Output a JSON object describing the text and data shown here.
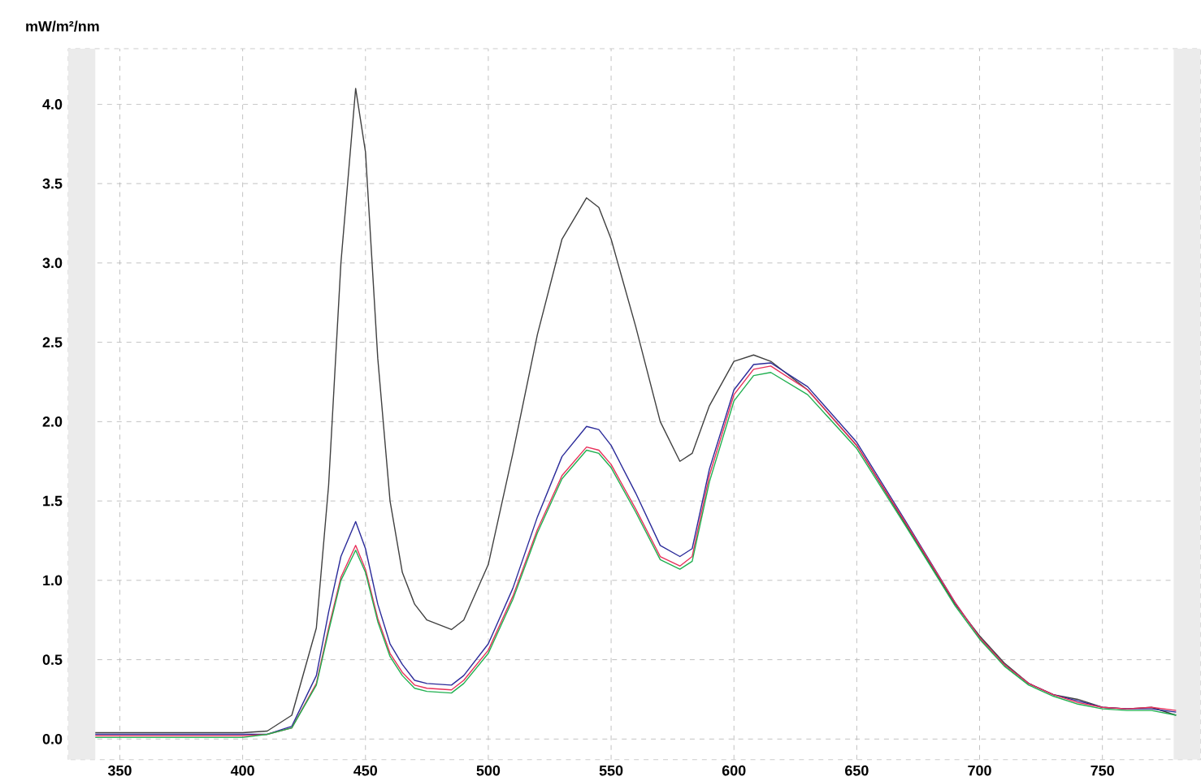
{
  "chart_data": {
    "type": "line",
    "ylabel": "mW/m²/nm",
    "grid": true,
    "xlim": [
      329,
      790
    ],
    "ylim": [
      -0.13,
      4.35
    ],
    "xticks": [
      350,
      400,
      450,
      500,
      550,
      600,
      650,
      700,
      750
    ],
    "yticks": [
      {
        "value": 0,
        "label": "0.0"
      },
      0.5,
      {
        "value": 1,
        "label": "1.0"
      },
      1.5,
      {
        "value": 2,
        "label": "2.0"
      },
      2.5,
      {
        "value": 3,
        "label": "3.0"
      },
      3.5,
      {
        "value": 4,
        "label": "4.0"
      }
    ],
    "bands": [
      {
        "axis": "x",
        "from": 329,
        "to": 340,
        "color": "#ebebeb"
      },
      {
        "axis": "x",
        "from": 779,
        "to": 790,
        "color": "#ebebeb"
      }
    ],
    "x": [
      340,
      400,
      410,
      420,
      430,
      435,
      440,
      446,
      450,
      455,
      460,
      465,
      470,
      475,
      485,
      490,
      500,
      510,
      520,
      530,
      540,
      545,
      550,
      560,
      570,
      578,
      583,
      590,
      600,
      608,
      615,
      630,
      650,
      670,
      690,
      700,
      710,
      720,
      730,
      740,
      750,
      760,
      770,
      780
    ],
    "series": [
      {
        "color": "#404040",
        "values": [
          0.04,
          0.04,
          0.05,
          0.15,
          0.7,
          1.6,
          3.0,
          4.1,
          3.7,
          2.4,
          1.5,
          1.05,
          0.85,
          0.75,
          0.69,
          0.75,
          1.1,
          1.8,
          2.55,
          3.15,
          3.41,
          3.35,
          3.15,
          2.6,
          2.0,
          1.75,
          1.8,
          2.1,
          2.38,
          2.42,
          2.38,
          2.2,
          1.85,
          1.35,
          0.85,
          0.65,
          0.48,
          0.35,
          0.28,
          0.25,
          0.2,
          0.19,
          0.2,
          0.15
        ]
      },
      {
        "color": "#2b2b9a",
        "values": [
          0.03,
          0.03,
          0.03,
          0.08,
          0.4,
          0.8,
          1.15,
          1.37,
          1.2,
          0.85,
          0.6,
          0.47,
          0.37,
          0.35,
          0.34,
          0.4,
          0.6,
          0.95,
          1.4,
          1.78,
          1.97,
          1.95,
          1.85,
          1.55,
          1.22,
          1.15,
          1.2,
          1.7,
          2.2,
          2.36,
          2.37,
          2.22,
          1.87,
          1.37,
          0.86,
          0.64,
          0.47,
          0.35,
          0.28,
          0.24,
          0.2,
          0.19,
          0.19,
          0.17
        ]
      },
      {
        "color": "#e8305a",
        "values": [
          0.02,
          0.02,
          0.03,
          0.07,
          0.35,
          0.7,
          1.02,
          1.22,
          1.07,
          0.76,
          0.54,
          0.42,
          0.34,
          0.32,
          0.31,
          0.37,
          0.56,
          0.9,
          1.32,
          1.66,
          1.84,
          1.82,
          1.73,
          1.45,
          1.15,
          1.09,
          1.15,
          1.66,
          2.17,
          2.33,
          2.35,
          2.2,
          1.85,
          1.36,
          0.86,
          0.64,
          0.47,
          0.35,
          0.28,
          0.23,
          0.2,
          0.19,
          0.2,
          0.18
        ]
      },
      {
        "color": "#20b050",
        "values": [
          0.01,
          0.01,
          0.03,
          0.07,
          0.34,
          0.68,
          1.0,
          1.19,
          1.05,
          0.74,
          0.52,
          0.4,
          0.32,
          0.3,
          0.29,
          0.35,
          0.54,
          0.88,
          1.3,
          1.64,
          1.82,
          1.8,
          1.71,
          1.43,
          1.13,
          1.07,
          1.12,
          1.62,
          2.13,
          2.29,
          2.31,
          2.17,
          1.83,
          1.34,
          0.84,
          0.63,
          0.46,
          0.34,
          0.27,
          0.22,
          0.19,
          0.18,
          0.18,
          0.15
        ]
      }
    ]
  }
}
